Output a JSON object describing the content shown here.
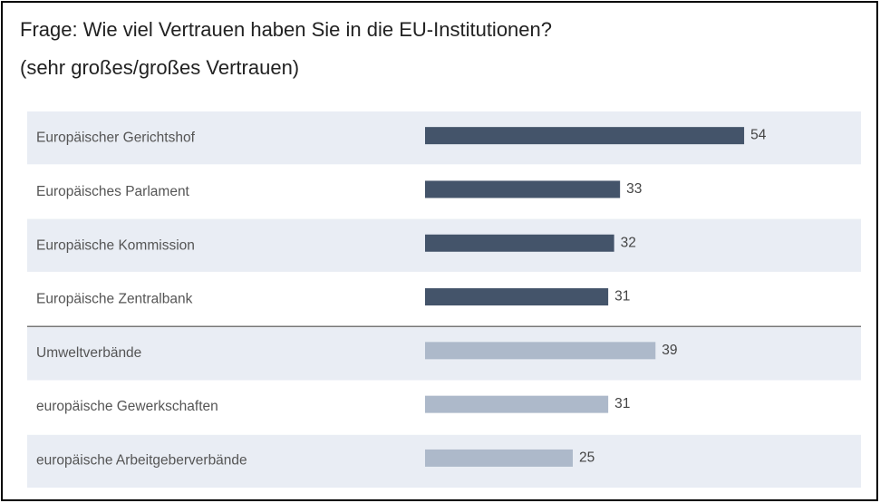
{
  "chart_data": {
    "type": "bar",
    "orientation": "horizontal",
    "title": "Frage: Wie viel Vertrauen haben Sie in die EU-Institutionen?",
    "subtitle": "(sehr großes/großes Vertrauen)",
    "categories": [
      "Europäischer Gerichtshof",
      "Europäisches Parlament",
      "Europäische Kommission",
      "Europäische Zentralbank",
      "Umweltverbände",
      "europäische Gewerkschaften",
      "europäische Arbeitgeberverbände"
    ],
    "values": [
      54,
      33,
      32,
      31,
      39,
      31,
      25
    ],
    "colors": [
      "#44546a",
      "#44546a",
      "#44546a",
      "#44546a",
      "#adb9ca",
      "#adb9ca",
      "#adb9ca"
    ]
  }
}
